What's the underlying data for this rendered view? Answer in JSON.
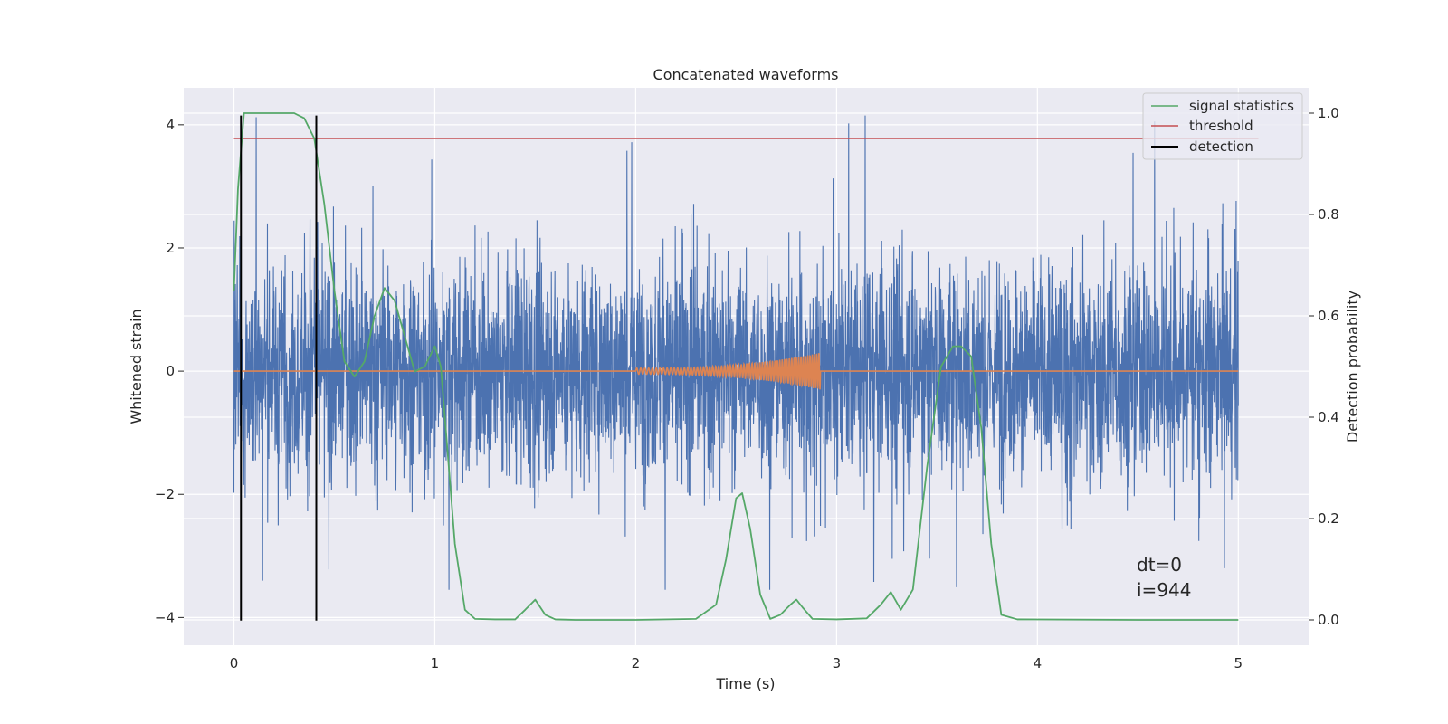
{
  "chart_data": {
    "type": "line",
    "title": "Concatenated waveforms",
    "xlabel": "Time (s)",
    "ylabel": "Whitened strain",
    "y2label": "Detection probability",
    "xlim": [
      -0.25,
      5.35
    ],
    "ylim": [
      -4.45,
      4.6
    ],
    "y2lim": [
      -0.05,
      1.05
    ],
    "x_ticks": [
      0,
      1,
      2,
      3,
      4,
      5
    ],
    "y_ticks": [
      -4,
      -2,
      0,
      2,
      4
    ],
    "y2_ticks": [
      0.0,
      0.2,
      0.4,
      0.6,
      0.8,
      1.0
    ],
    "grid": true,
    "legend_position": "top-right",
    "colors": {
      "strain": "#4c72b0",
      "injection": "#dd8452",
      "signal_statistics": "#55a868",
      "threshold": "#c44e52",
      "detection": "#000000",
      "background": "#eaeaf2",
      "grid": "#ffffff"
    },
    "series": [
      {
        "name": "signal statistics",
        "axis": "right",
        "x": [
          0.0,
          0.02,
          0.05,
          0.1,
          0.2,
          0.3,
          0.35,
          0.4,
          0.45,
          0.5,
          0.55,
          0.6,
          0.65,
          0.7,
          0.75,
          0.8,
          0.85,
          0.9,
          0.95,
          1.0,
          1.03,
          1.06,
          1.1,
          1.15,
          1.2,
          1.3,
          1.4,
          1.45,
          1.5,
          1.55,
          1.6,
          1.7,
          2.0,
          2.3,
          2.4,
          2.45,
          2.5,
          2.53,
          2.57,
          2.62,
          2.67,
          2.72,
          2.77,
          2.8,
          2.83,
          2.88,
          3.0,
          3.15,
          3.22,
          3.27,
          3.32,
          3.38,
          3.45,
          3.52,
          3.58,
          3.62,
          3.67,
          3.72,
          3.77,
          3.82,
          3.9,
          4.5,
          5.0
        ],
        "values": [
          0.65,
          0.85,
          1.0,
          1.0,
          1.0,
          1.0,
          0.99,
          0.95,
          0.82,
          0.65,
          0.51,
          0.48,
          0.51,
          0.6,
          0.655,
          0.63,
          0.56,
          0.49,
          0.5,
          0.54,
          0.5,
          0.35,
          0.15,
          0.02,
          0.002,
          0.001,
          0.001,
          0.02,
          0.04,
          0.01,
          0.001,
          0.0,
          0.0,
          0.002,
          0.03,
          0.12,
          0.24,
          0.25,
          0.18,
          0.05,
          0.002,
          0.01,
          0.03,
          0.04,
          0.025,
          0.002,
          0.001,
          0.003,
          0.03,
          0.055,
          0.02,
          0.06,
          0.3,
          0.5,
          0.54,
          0.54,
          0.52,
          0.38,
          0.15,
          0.01,
          0.001,
          0.0,
          0.0
        ]
      },
      {
        "name": "threshold",
        "axis": "right",
        "x": [
          0.0,
          5.1
        ],
        "values": [
          0.95,
          0.95
        ]
      },
      {
        "name": "detection",
        "axis": "left",
        "x": [
          0.035,
          0.41
        ],
        "values": [
          4.15,
          4.15
        ],
        "ymin": -4.05
      }
    ],
    "strain": {
      "x_start": 0.0,
      "x_end": 5.0,
      "core_band": 0.85,
      "peak_max": 4.15,
      "peak_min": -3.55
    },
    "injection": {
      "x_start": 2.0,
      "x_end": 2.92,
      "max_amplitude": 0.3
    },
    "annotations": [
      "dt=0",
      "i=944"
    ]
  }
}
